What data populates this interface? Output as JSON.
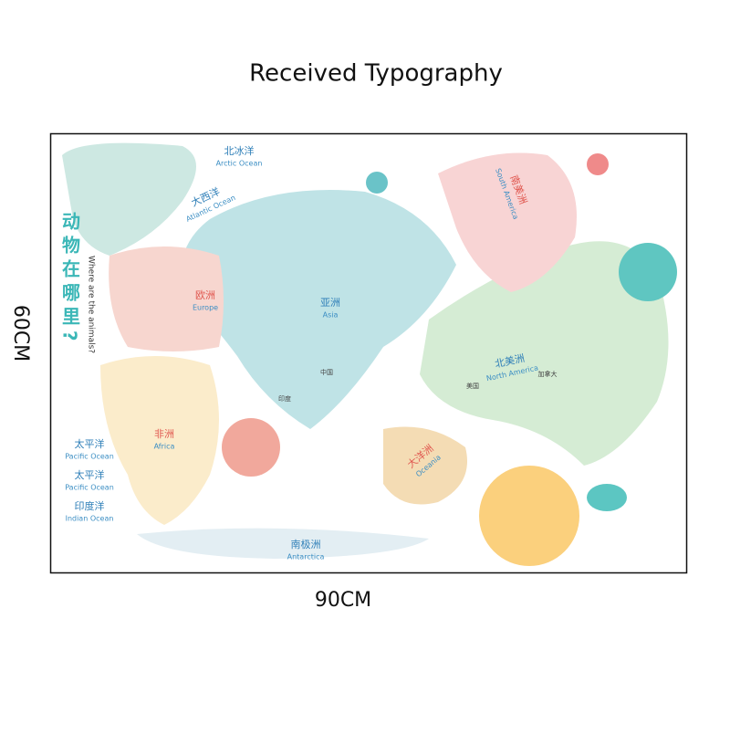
{
  "header": {
    "title": "Received Typography"
  },
  "dimensions": {
    "height": "60CM",
    "width": "90CM"
  },
  "map": {
    "heading": {
      "zh": "动物在哪里?",
      "en": "Where are the animals?"
    },
    "regions": [
      {
        "zh": "北冰洋",
        "en": "Arctic Ocean"
      },
      {
        "zh": "大西洋",
        "en": "Atlantic Ocean"
      },
      {
        "zh": "欧洲",
        "en": "Europe"
      },
      {
        "zh": "亚洲",
        "en": "Asia"
      },
      {
        "zh": "非洲",
        "en": "Africa"
      },
      {
        "zh": "太平洋",
        "en": "Pacific Ocean"
      },
      {
        "zh": "太平洋",
        "en": "Pacific Ocean"
      },
      {
        "zh": "印度洋",
        "en": "Indian Ocean"
      },
      {
        "zh": "南极洲",
        "en": "Antarctica"
      },
      {
        "zh": "北美洲",
        "en": "North America"
      },
      {
        "zh": "南美洲",
        "en": "South America"
      },
      {
        "zh": "大洋洲",
        "en": "Oceania"
      }
    ],
    "countries": [
      "中国",
      "印度",
      "美国",
      "加拿大"
    ]
  }
}
